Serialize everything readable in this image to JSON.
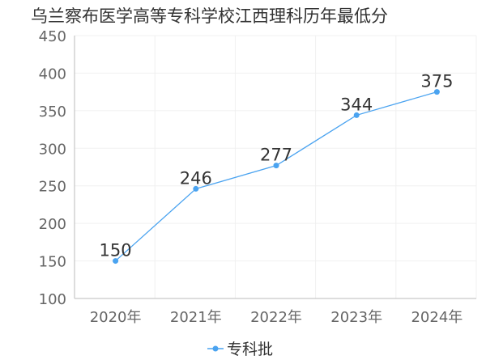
{
  "chart_data": {
    "type": "line",
    "title": "乌兰察布医学高等专科学校江西理科历年最低分",
    "categories": [
      "2020年",
      "2021年",
      "2022年",
      "2023年",
      "2024年"
    ],
    "series": [
      {
        "name": "专科批",
        "values": [
          150,
          246,
          277,
          344,
          375
        ]
      }
    ],
    "ylim": [
      100,
      450
    ],
    "yticks": [
      100,
      150,
      200,
      250,
      300,
      350,
      400,
      450
    ],
    "grid": true,
    "legend": "bottom",
    "colors": {
      "line": "#4aa3f0",
      "axis": "#bbbbbb",
      "grid": "#f0f0f0"
    }
  }
}
